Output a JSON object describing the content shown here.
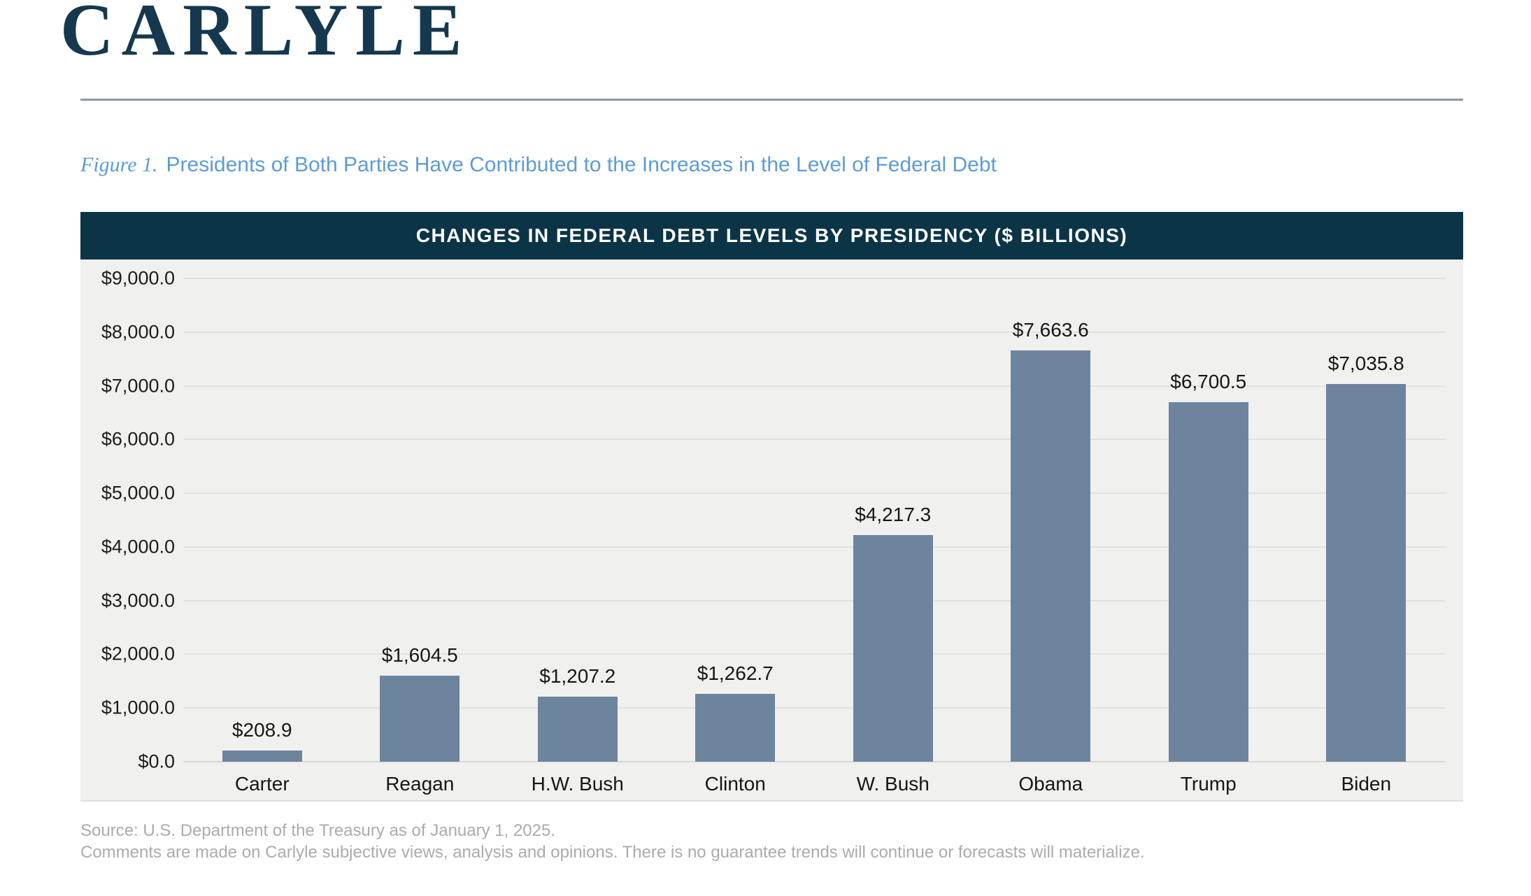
{
  "brand": {
    "logo_text": "CARLYLE",
    "logo_color": "#16384E"
  },
  "figure_caption": {
    "prefix": "Figure 1.",
    "text": "Presidents of Both Parties Have Contributed to the Increases in the Level of Federal Debt",
    "color": "#5C9BD8"
  },
  "chart_data": {
    "type": "bar",
    "title": "CHANGES IN FEDERAL DEBT LEVELS BY PRESIDENCY ($ BILLIONS)",
    "categories": [
      "Carter",
      "Reagan",
      "H.W. Bush",
      "Clinton",
      "W. Bush",
      "Obama",
      "Trump",
      "Biden"
    ],
    "values": [
      208.9,
      1604.5,
      1207.2,
      1262.7,
      4217.3,
      7663.6,
      6700.5,
      7035.8
    ],
    "value_labels": [
      "$208.9",
      "$1,604.5",
      "$1,207.2",
      "$1,262.7",
      "$4,217.3",
      "$7,663.6",
      "$6,700.5",
      "$7,035.8"
    ],
    "xlabel": "",
    "ylabel": "",
    "ylim": [
      0,
      9000
    ],
    "ytick_step": 1000,
    "y_tick_labels": [
      "$0.0",
      "$1,000.0",
      "$2,000.0",
      "$3,000.0",
      "$4,000.0",
      "$5,000.0",
      "$6,000.0",
      "$7,000.0",
      "$8,000.0",
      "$9,000.0"
    ],
    "grid": true,
    "legend": false,
    "colors": {
      "bar": "#6D849E",
      "header_bg": "#0B3547",
      "header_text": "#FFFFFF",
      "plot_bg": "#F0F0EF",
      "gridline": "#E1E1E0",
      "axis_text": "#161616"
    }
  },
  "footer": {
    "source": "Source: U.S. Department of the Treasury as of January 1, 2025.",
    "disclaimer": "Comments are made on Carlyle subjective views, analysis and opinions. There is no guarantee trends will continue or forecasts will materialize."
  }
}
